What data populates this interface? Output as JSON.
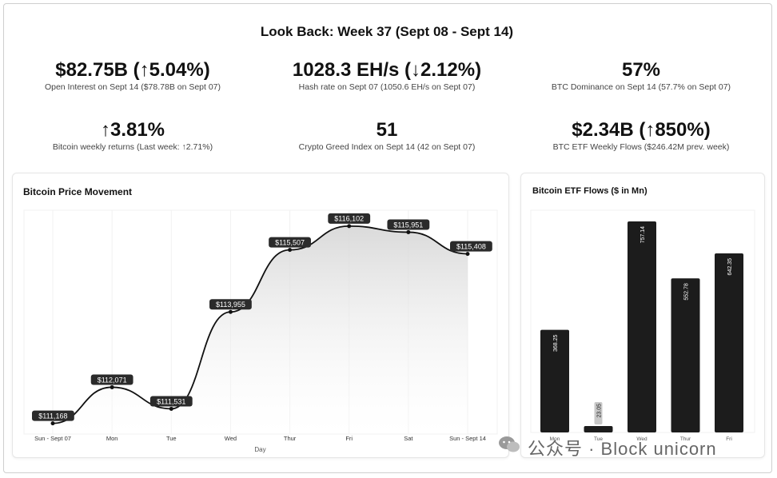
{
  "title": "Look Back: Week 37 (Sept 08 - Sept 14)",
  "stats": [
    {
      "value": "$82.75B (↑5.04%)",
      "sub": "Open Interest on Sept 14 ($78.78B on Sept 07)"
    },
    {
      "value": "1028.3 EH/s (↓2.12%)",
      "sub": "Hash rate on Sept 07 (1050.6 EH/s on Sept 07)"
    },
    {
      "value": "57%",
      "sub": "BTC Dominance on Sept 14 (57.7% on Sept 07)"
    },
    {
      "value": "↑3.81%",
      "sub": "Bitcoin weekly returns (Last week: ↑2.71%)"
    },
    {
      "value": "51",
      "sub": "Crypto Greed Index on Sept 14 (42 on Sept 07)"
    },
    {
      "value": "$2.34B (↑850%)",
      "sub": "BTC ETF Weekly Flows ($246.42M prev. week)"
    }
  ],
  "watermark": "公众号 · Block unicorn",
  "chart_data": [
    {
      "type": "line",
      "title": "Bitcoin Price Movement",
      "xlabel": "Day",
      "categories": [
        "Sun - Sept 07",
        "Mon",
        "Tue",
        "Wed",
        "Thur",
        "Fri",
        "Sat",
        "Sun - Sept 14"
      ],
      "values": [
        111168,
        112071,
        111531,
        113955,
        115507,
        116102,
        115951,
        115408
      ],
      "data_labels": [
        "$111,168",
        "$112,071",
        "$111,531",
        "$113,955",
        "$115,507",
        "$116,102",
        "$115,951",
        "$115,408"
      ],
      "ylim": [
        110900,
        116500
      ],
      "color": "#111111"
    },
    {
      "type": "bar",
      "title": "Bitcoin ETF Flows ($ in Mn)",
      "categories": [
        "Mon",
        "Tue",
        "Wed",
        "Thur",
        "Fri"
      ],
      "values": [
        368.25,
        23.05,
        757.14,
        552.78,
        642.35
      ],
      "data_labels": [
        "368.25",
        "23.05",
        "757.14",
        "552.78",
        "642.35"
      ],
      "ylim": [
        0,
        757.14
      ],
      "color": "#1c1c1c"
    }
  ]
}
